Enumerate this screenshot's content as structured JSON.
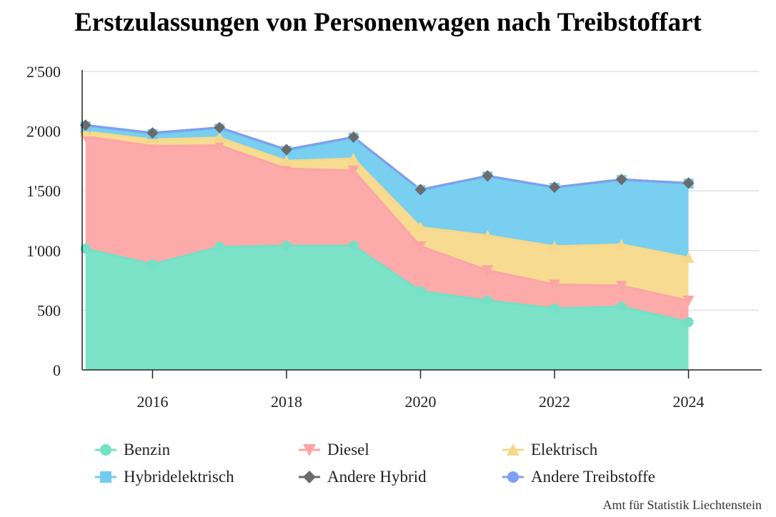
{
  "chart_data": {
    "type": "area",
    "stacked": true,
    "title": "Erstzulassungen von Personenwagen nach Treibstoffart",
    "x": [
      2015,
      2016,
      2017,
      2018,
      2019,
      2020,
      2021,
      2022,
      2023,
      2024
    ],
    "x_tick_labels": [
      "2016",
      "2018",
      "2020",
      "2022",
      "2024"
    ],
    "x_ticks": [
      2016,
      2018,
      2020,
      2022,
      2024
    ],
    "y_ticks": [
      0,
      500,
      1000,
      1500,
      2000,
      2500
    ],
    "y_tick_labels": [
      "0",
      "500",
      "1'000",
      "1'500",
      "2'000",
      "2'500"
    ],
    "ylim": [
      0,
      2500
    ],
    "xlim": [
      2014.95,
      2025.05
    ],
    "grid": true,
    "legend": "bottom",
    "series": [
      {
        "name": "Benzin",
        "color": "#74e0c5",
        "marker": "circle",
        "values": [
          1015,
          885,
          1030,
          1040,
          1040,
          660,
          580,
          515,
          530,
          400
        ]
      },
      {
        "name": "Diesel",
        "color": "#fca5a5",
        "marker": "triangle-down",
        "values": [
          940,
          990,
          850,
          645,
          630,
          375,
          255,
          200,
          175,
          180
        ]
      },
      {
        "name": "Elektrisch",
        "color": "#f5d98b",
        "marker": "triangle-up",
        "values": [
          40,
          55,
          65,
          65,
          100,
          160,
          290,
          320,
          345,
          360
        ]
      },
      {
        "name": "Hybridelektrisch",
        "color": "#72ccef",
        "marker": "square",
        "values": [
          45,
          45,
          75,
          85,
          175,
          310,
          495,
          490,
          540,
          620
        ]
      },
      {
        "name": "Andere Hybrid",
        "color": "#6b6b6b",
        "marker": "diamond",
        "values": [
          10,
          10,
          10,
          10,
          5,
          5,
          5,
          5,
          5,
          5
        ]
      },
      {
        "name": "Andere Treibstoffe",
        "color": "#7f9ff2",
        "marker": "circle",
        "values": [
          0,
          0,
          0,
          0,
          0,
          0,
          0,
          0,
          0,
          0
        ]
      }
    ],
    "source": "Amt für Statistik Liechtenstein"
  }
}
